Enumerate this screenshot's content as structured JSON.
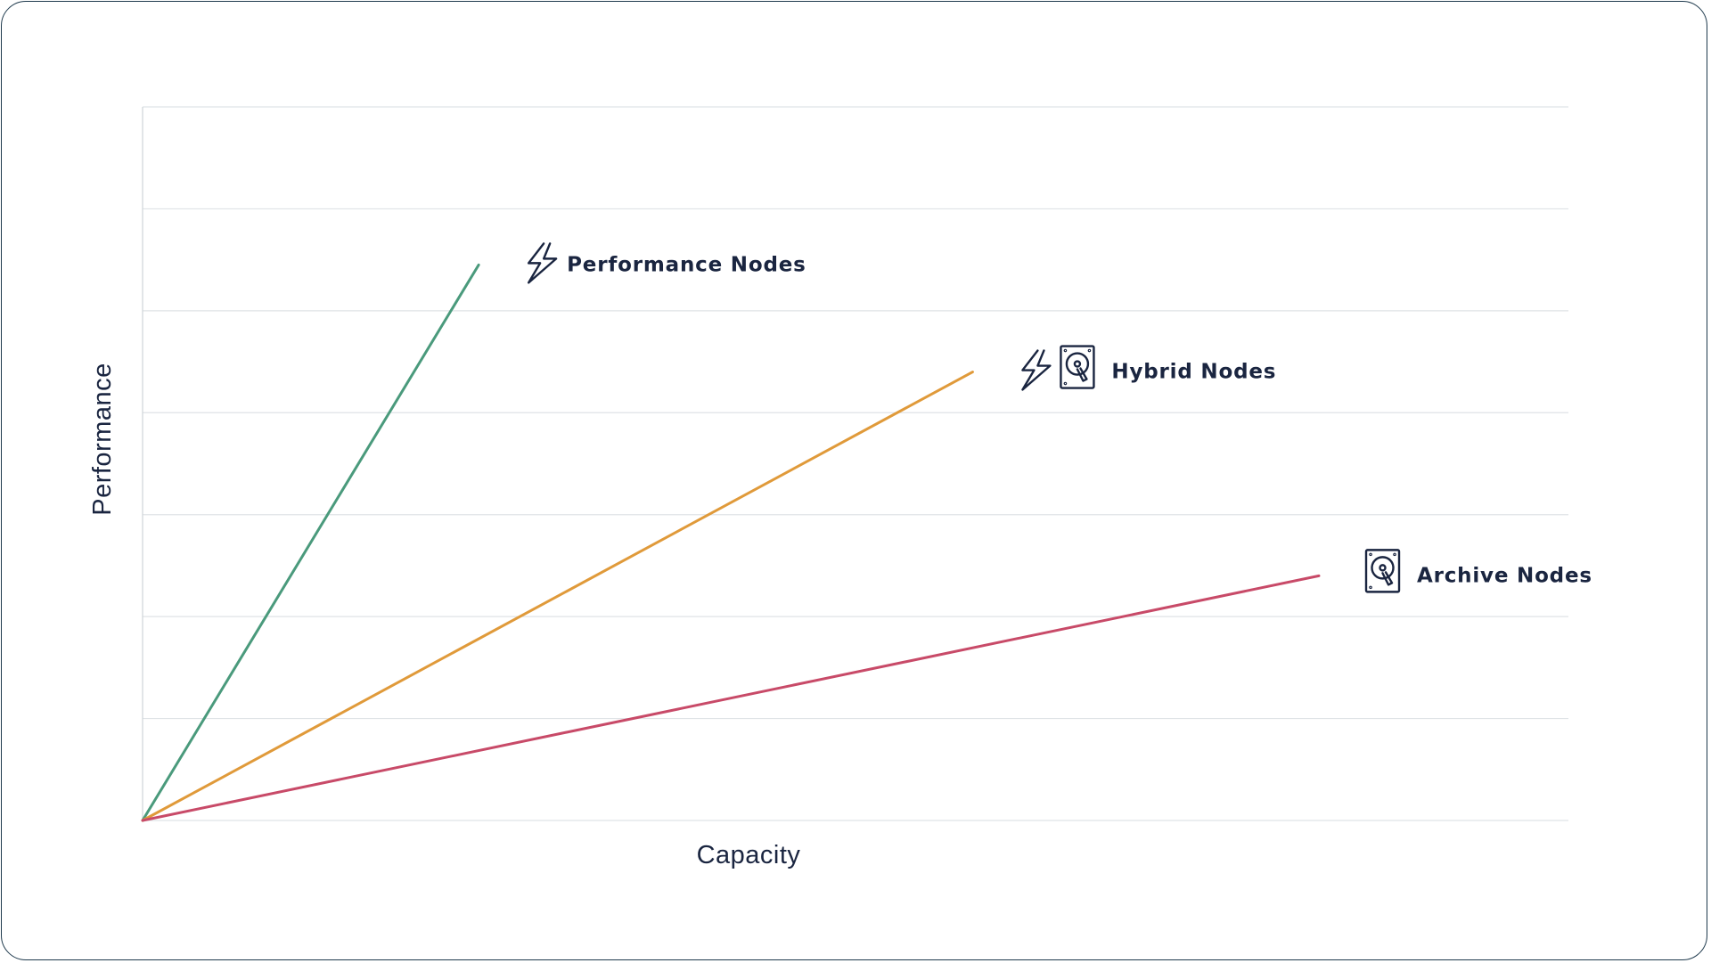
{
  "chart_data": {
    "type": "line",
    "title": "",
    "xlabel": "Capacity",
    "ylabel": "Performance",
    "xlim": [
      0,
      14
    ],
    "ylim": [
      0,
      7
    ],
    "grid": true,
    "gridlines_y": [
      0,
      1,
      2,
      3,
      4,
      5,
      6,
      7
    ],
    "series": [
      {
        "name": "Performance Nodes",
        "color": "#4a9a7c",
        "icons": [
          "lightning-icon"
        ],
        "points": [
          [
            0,
            0
          ],
          [
            3.3,
            5.45
          ]
        ]
      },
      {
        "name": "Hybrid Nodes",
        "color": "#e09a3a",
        "icons": [
          "lightning-icon",
          "hard-drive-icon"
        ],
        "points": [
          [
            0,
            0
          ],
          [
            8.15,
            4.4
          ]
        ]
      },
      {
        "name": "Archive Nodes",
        "color": "#c84a68",
        "icons": [
          "hard-drive-icon"
        ],
        "points": [
          [
            0,
            0
          ],
          [
            11.55,
            2.4
          ]
        ]
      }
    ]
  }
}
